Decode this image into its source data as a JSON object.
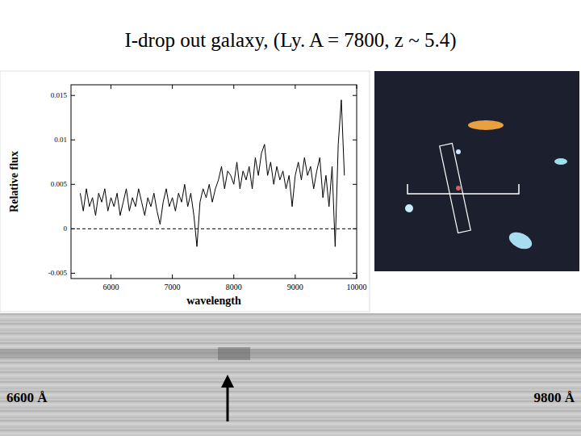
{
  "chart_data": {
    "type": "line",
    "title": "I-drop out galaxy, (Ly. A = 7800, z ~ 5.4)",
    "x_label": "wavelength",
    "y_label": "Relative flux",
    "x": [
      5500,
      5550,
      5600,
      5650,
      5700,
      5750,
      5800,
      5850,
      5900,
      5950,
      6000,
      6050,
      6100,
      6150,
      6200,
      6250,
      6300,
      6350,
      6400,
      6450,
      6500,
      6550,
      6600,
      6650,
      6700,
      6750,
      6800,
      6850,
      6900,
      6950,
      7000,
      7050,
      7100,
      7150,
      7200,
      7250,
      7300,
      7350,
      7400,
      7450,
      7500,
      7550,
      7600,
      7650,
      7700,
      7750,
      7800,
      7850,
      7900,
      7950,
      8000,
      8050,
      8100,
      8150,
      8200,
      8250,
      8300,
      8350,
      8400,
      8450,
      8500,
      8550,
      8600,
      8650,
      8700,
      8750,
      8800,
      8850,
      8900,
      8950,
      9000,
      9050,
      9100,
      9150,
      9200,
      9250,
      9300,
      9350,
      9400,
      9450,
      9500,
      9550,
      9600,
      9650,
      9700,
      9750,
      9800
    ],
    "values": [
      0.004,
      0.002,
      0.0045,
      0.0025,
      0.0035,
      0.0015,
      0.004,
      0.003,
      0.0045,
      0.002,
      0.0035,
      0.0025,
      0.004,
      0.0015,
      0.003,
      0.0045,
      0.002,
      0.0035,
      0.0025,
      0.0045,
      0.003,
      0.0015,
      0.0035,
      0.0025,
      0.004,
      0.002,
      0.0005,
      0.003,
      0.0045,
      0.0025,
      0.0035,
      0.002,
      0.004,
      0.003,
      0.005,
      0.0025,
      0.004,
      0.0015,
      -0.002,
      0.003,
      0.0045,
      0.0035,
      0.005,
      0.003,
      0.0045,
      0.0055,
      0.007,
      0.0045,
      0.0065,
      0.006,
      0.005,
      0.0075,
      0.0045,
      0.0065,
      0.0055,
      0.007,
      0.0045,
      0.008,
      0.006,
      0.0085,
      0.0095,
      0.006,
      0.0075,
      0.005,
      0.007,
      0.0055,
      0.0065,
      0.0045,
      0.006,
      0.0025,
      0.006,
      0.0075,
      0.0055,
      0.008,
      0.006,
      0.007,
      0.0045,
      0.0065,
      0.008,
      0.0035,
      0.006,
      0.0025,
      0.007,
      -0.002,
      0.0095,
      0.0145,
      0.006
    ],
    "color": "#000000",
    "xlim": [
      5350,
      10000
    ],
    "xticks": [
      6000,
      7000,
      8000,
      9000,
      10000
    ],
    "ylim": [
      -0.0056,
      0.0162
    ],
    "yticks": [
      -0.005,
      0,
      0.005,
      0.01,
      0.015
    ],
    "reference_lines": [
      0
    ],
    "grid": false
  },
  "spectrum_2d": {
    "left_label": "6600 Å",
    "right_label": "9800 Å"
  }
}
